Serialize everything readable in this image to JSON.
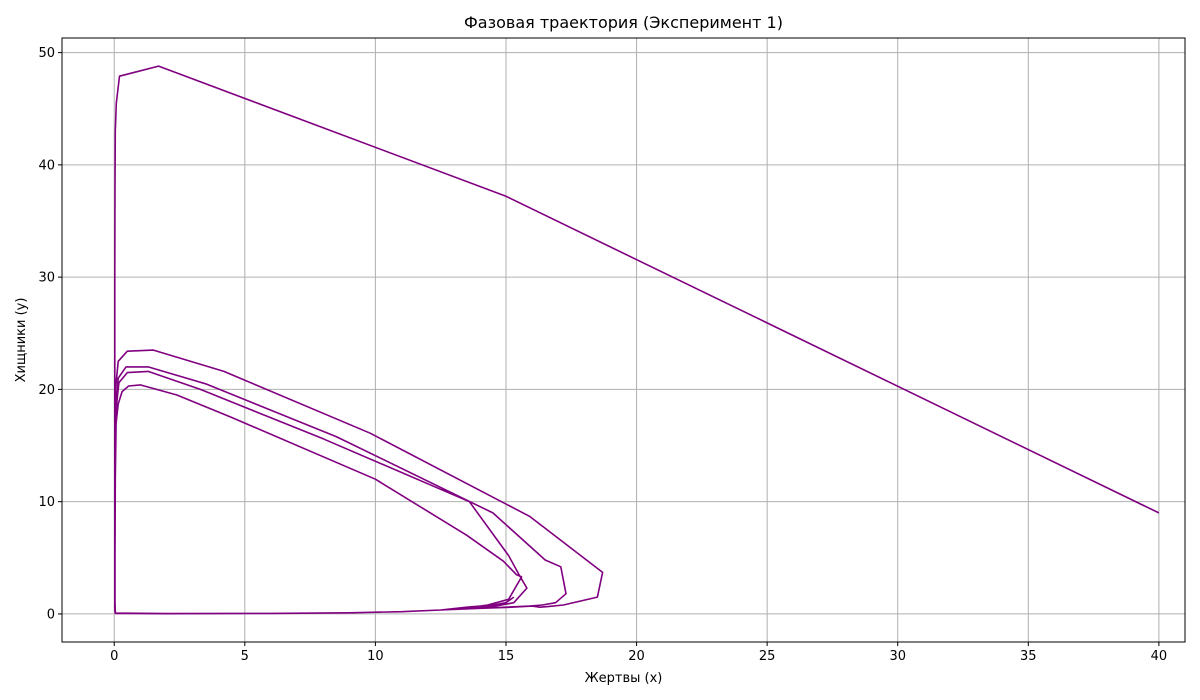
{
  "chart_data": {
    "type": "line",
    "title": "Фазовая траектория (Эксперимент 1)",
    "xlabel": "Жертвы (x)",
    "ylabel": "Хищники (y)",
    "xlim": [
      -2.0,
      41.0
    ],
    "ylim": [
      -2.5,
      51.3
    ],
    "xticks": [
      0,
      5,
      10,
      15,
      20,
      25,
      30,
      35,
      40
    ],
    "yticks": [
      0,
      10,
      20,
      30,
      40,
      50
    ],
    "grid": true,
    "color": "#800080",
    "series": [
      {
        "x": [
          40.0,
          15.0,
          1.7,
          0.2,
          0.08,
          0.04,
          0.03,
          0.02,
          0.02,
          0.02,
          0.02,
          0.02,
          0.03,
          0.05,
          2.0,
          6.0,
          9.0,
          11.0,
          12.5,
          14.0,
          15.2,
          16.0,
          16.3,
          16.6,
          17.2,
          18.5,
          18.7,
          15.9,
          9.8,
          4.2,
          1.5,
          0.5,
          0.15,
          0.05,
          0.03,
          0.02,
          0.02,
          0.03,
          0.05,
          2.0,
          6.0,
          9.0,
          11.0,
          12.5,
          14.0,
          15.0,
          15.9,
          16.4,
          16.9,
          17.3,
          17.1,
          16.5,
          14.5,
          8.5,
          3.5,
          1.3,
          0.45,
          0.15,
          0.05,
          0.03,
          0.02,
          0.03,
          0.05,
          2.0,
          6.0,
          9.0,
          11.0,
          12.5,
          13.5,
          14.6,
          15.3,
          15.8,
          15.5,
          15.1,
          13.6,
          8.0,
          3.3,
          1.3,
          0.5,
          0.18,
          0.06,
          0.03,
          0.02,
          0.03,
          0.05,
          2.0,
          6.0,
          9.0,
          11.0,
          12.5,
          13.4,
          14.3,
          15.1,
          15.6,
          15.4,
          14.9,
          13.5,
          10.0,
          4.5,
          2.4,
          1.0,
          0.55,
          0.3,
          0.15,
          0.07,
          0.04,
          0.03,
          0.03,
          0.04,
          0.05,
          2.0,
          6.0,
          9.0,
          11.0,
          12.5,
          13.5,
          14.5,
          15.0,
          15.3
        ],
        "y": [
          9.0,
          37.2,
          48.8,
          47.9,
          45.5,
          43.0,
          38.0,
          30.0,
          20.0,
          10.0,
          3.0,
          0.6,
          0.15,
          0.05,
          0.02,
          0.05,
          0.1,
          0.2,
          0.35,
          0.5,
          0.6,
          0.7,
          0.6,
          0.65,
          0.8,
          1.5,
          3.7,
          8.7,
          16.1,
          21.6,
          23.5,
          23.4,
          22.5,
          20.0,
          15.0,
          8.0,
          2.0,
          0.3,
          0.07,
          0.03,
          0.05,
          0.1,
          0.2,
          0.35,
          0.5,
          0.6,
          0.7,
          0.8,
          1.0,
          1.8,
          4.2,
          4.8,
          9.0,
          15.8,
          20.5,
          22.0,
          22.0,
          21.0,
          18.0,
          12.0,
          5.0,
          0.5,
          0.08,
          0.03,
          0.05,
          0.1,
          0.2,
          0.35,
          0.5,
          0.7,
          1.0,
          2.3,
          3.5,
          5.2,
          10.0,
          15.6,
          20.0,
          21.6,
          21.5,
          20.6,
          18.0,
          10.0,
          3.0,
          0.4,
          0.08,
          0.03,
          0.05,
          0.1,
          0.2,
          0.35,
          0.5,
          0.8,
          1.3,
          3.3,
          3.5,
          4.7,
          7.0,
          12.0,
          17.5,
          19.5,
          20.4,
          20.3,
          19.8,
          18.7,
          17.0,
          12.0,
          5.0,
          1.0,
          0.2,
          0.05,
          0.03,
          0.05,
          0.1,
          0.2,
          0.35,
          0.6,
          0.8,
          1.0,
          1.5
        ]
      }
    ]
  }
}
